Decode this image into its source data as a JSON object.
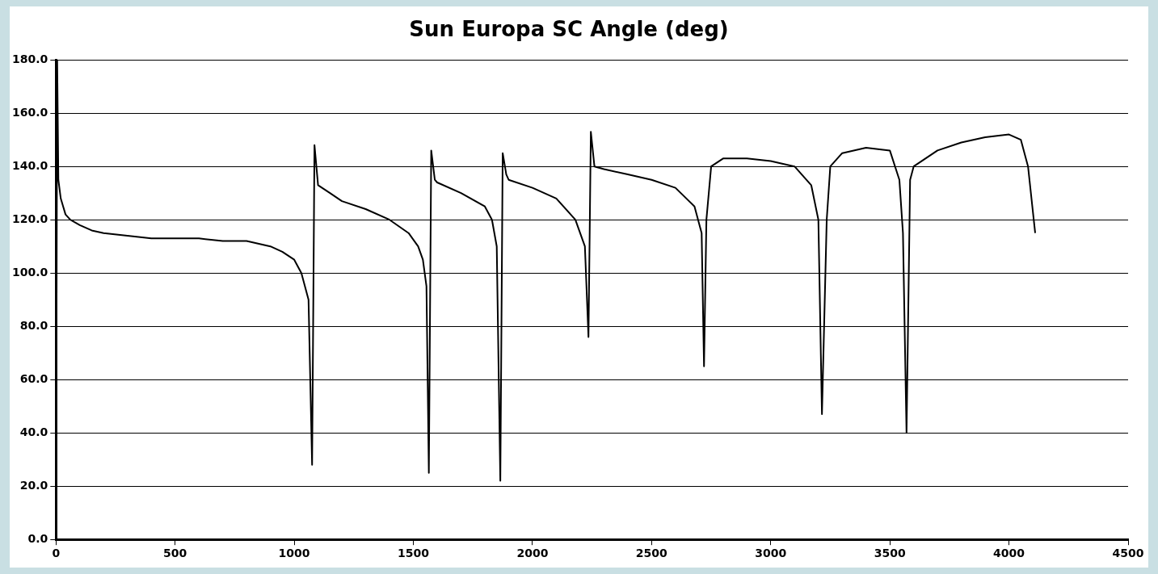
{
  "chart_data": {
    "type": "line",
    "title": "Sun Europa SC Angle (deg)",
    "x": [
      0,
      5,
      10,
      20,
      40,
      60,
      100,
      150,
      200,
      300,
      400,
      500,
      600,
      700,
      800,
      900,
      950,
      1000,
      1030,
      1060,
      1075,
      1085,
      1100,
      1150,
      1200,
      1300,
      1400,
      1480,
      1520,
      1540,
      1555,
      1565,
      1575,
      1590,
      1600,
      1700,
      1800,
      1830,
      1850,
      1865,
      1875,
      1890,
      1900,
      2000,
      2100,
      2180,
      2220,
      2235,
      2245,
      2260,
      2300,
      2400,
      2500,
      2600,
      2680,
      2710,
      2720,
      2730,
      2750,
      2800,
      2900,
      3000,
      3100,
      3170,
      3200,
      3215,
      3235,
      3250,
      3300,
      3400,
      3500,
      3540,
      3555,
      3570,
      3585,
      3600,
      3700,
      3800,
      3900,
      4000,
      4050,
      4080,
      4110
    ],
    "series": [
      {
        "color": "#000000",
        "values": [
          0,
          180,
          135,
          128,
          122,
          120,
          118,
          116,
          115,
          114,
          113,
          113,
          113,
          112,
          112,
          110,
          108,
          105,
          100,
          90,
          28,
          148,
          133,
          130,
          127,
          124,
          120,
          115,
          110,
          105,
          95,
          25,
          146,
          135,
          134,
          130,
          125,
          120,
          110,
          22,
          145,
          137,
          135,
          132,
          128,
          120,
          110,
          76,
          153,
          140,
          139,
          137,
          135,
          132,
          125,
          115,
          65,
          120,
          140,
          143,
          143,
          142,
          140,
          133,
          120,
          47,
          120,
          140,
          145,
          147,
          146,
          135,
          115,
          40,
          135,
          140,
          146,
          149,
          151,
          152,
          150,
          140,
          115
        ]
      }
    ],
    "xlim": [
      0,
      4500
    ],
    "xticks": [
      0,
      500,
      1000,
      1500,
      2000,
      2500,
      3000,
      3500,
      4000,
      4500
    ],
    "ylim": [
      0,
      180
    ],
    "yticks": [
      {
        "value": 0,
        "label": "0.0"
      },
      {
        "value": 20,
        "label": "20.0"
      },
      {
        "value": 40,
        "label": "40.0"
      },
      {
        "value": 60,
        "label": "60.0"
      },
      {
        "value": 80,
        "label": "80.0"
      },
      {
        "value": 100,
        "label": "100.0"
      },
      {
        "value": 120,
        "label": "120.0"
      },
      {
        "value": 140,
        "label": "140.0"
      },
      {
        "value": 160,
        "label": "160.0"
      },
      {
        "value": 180,
        "label": "180.0"
      }
    ],
    "grid": "y",
    "legend": false,
    "marker": "none",
    "line_style": "solid"
  }
}
